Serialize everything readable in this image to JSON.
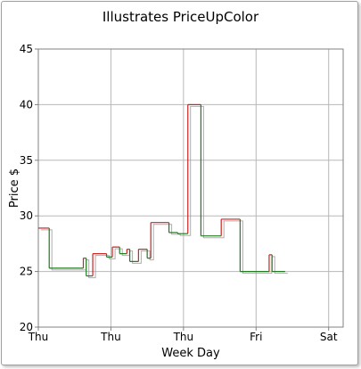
{
  "chart_data": {
    "type": "line",
    "style": "stepped price line, drawn with a faint offset shadow",
    "title": "Illustrates PriceUpColor",
    "xlabel": "Week Day",
    "ylabel": "Price $",
    "ylim": [
      20,
      45
    ],
    "y_ticks": [
      20,
      25,
      30,
      35,
      40,
      45
    ],
    "xlim": [
      0,
      4.2
    ],
    "x_ticks": [
      {
        "x": 0,
        "label": "Thu"
      },
      {
        "x": 1,
        "label": "Thu"
      },
      {
        "x": 2,
        "label": "Thu"
      },
      {
        "x": 3,
        "label": "Fri"
      },
      {
        "x": 4,
        "label": "Sat"
      }
    ],
    "grid": true,
    "up_color": "#cc2222",
    "down_color": "#1f7a1f",
    "shadow_color": "#9a9a9a",
    "series": [
      {
        "name": "Price",
        "points": [
          {
            "x": 0.0,
            "y": 28.9
          },
          {
            "x": 0.15,
            "y": 25.3
          },
          {
            "x": 0.62,
            "y": 26.2
          },
          {
            "x": 0.66,
            "y": 24.6
          },
          {
            "x": 0.75,
            "y": 26.6
          },
          {
            "x": 0.94,
            "y": 26.3
          },
          {
            "x": 1.02,
            "y": 27.2
          },
          {
            "x": 1.12,
            "y": 26.6
          },
          {
            "x": 1.22,
            "y": 27.0
          },
          {
            "x": 1.26,
            "y": 25.9
          },
          {
            "x": 1.38,
            "y": 27.0
          },
          {
            "x": 1.5,
            "y": 26.2
          },
          {
            "x": 1.55,
            "y": 29.4
          },
          {
            "x": 1.8,
            "y": 28.5
          },
          {
            "x": 1.92,
            "y": 28.4
          },
          {
            "x": 2.06,
            "y": 40.0
          },
          {
            "x": 2.24,
            "y": 28.2
          },
          {
            "x": 2.52,
            "y": 29.7
          },
          {
            "x": 2.78,
            "y": 25.0
          },
          {
            "x": 3.18,
            "y": 26.5
          },
          {
            "x": 3.22,
            "y": 25.0
          },
          {
            "x": 3.4,
            "y": 25.0
          }
        ]
      }
    ]
  }
}
